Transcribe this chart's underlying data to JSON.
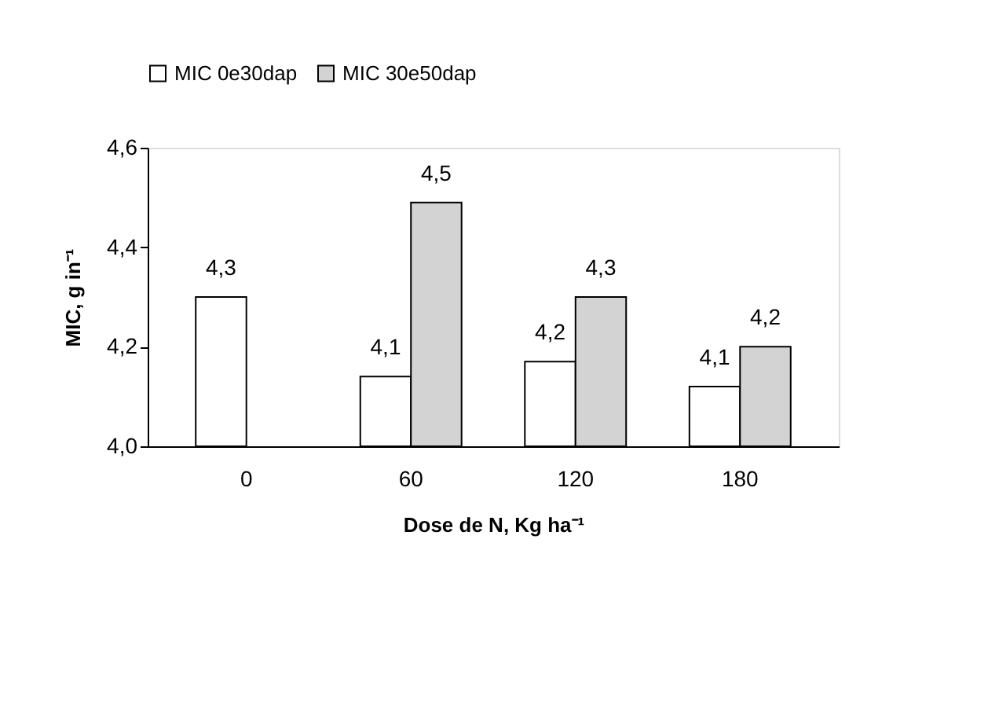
{
  "chart_data": {
    "type": "bar",
    "xlabel": "Dose de N, Kg ha⁻¹",
    "ylabel": "MIC, g in⁻¹",
    "categories": [
      "0",
      "60",
      "120",
      "180"
    ],
    "series": [
      {
        "name": "MIC 0e30dap",
        "color": "#ffffff",
        "values": [
          4.3,
          4.14,
          4.17,
          4.12
        ],
        "value_labels": [
          "4,3",
          "4,1",
          "4,2",
          "4,1"
        ]
      },
      {
        "name": "MIC 30e50dap",
        "color": "#d3d3d3",
        "values": [
          null,
          4.49,
          4.3,
          4.2
        ],
        "value_labels": [
          null,
          "4,5",
          "4,3",
          "4,2"
        ]
      }
    ],
    "ylim": [
      4.0,
      4.6
    ],
    "yticks": [
      {
        "value": 4.0,
        "label": "4,0"
      },
      {
        "value": 4.2,
        "label": "4,2"
      },
      {
        "value": 4.4,
        "label": "4,4"
      },
      {
        "value": 4.6,
        "label": "4,6"
      }
    ],
    "grid": false,
    "legend": "top"
  }
}
